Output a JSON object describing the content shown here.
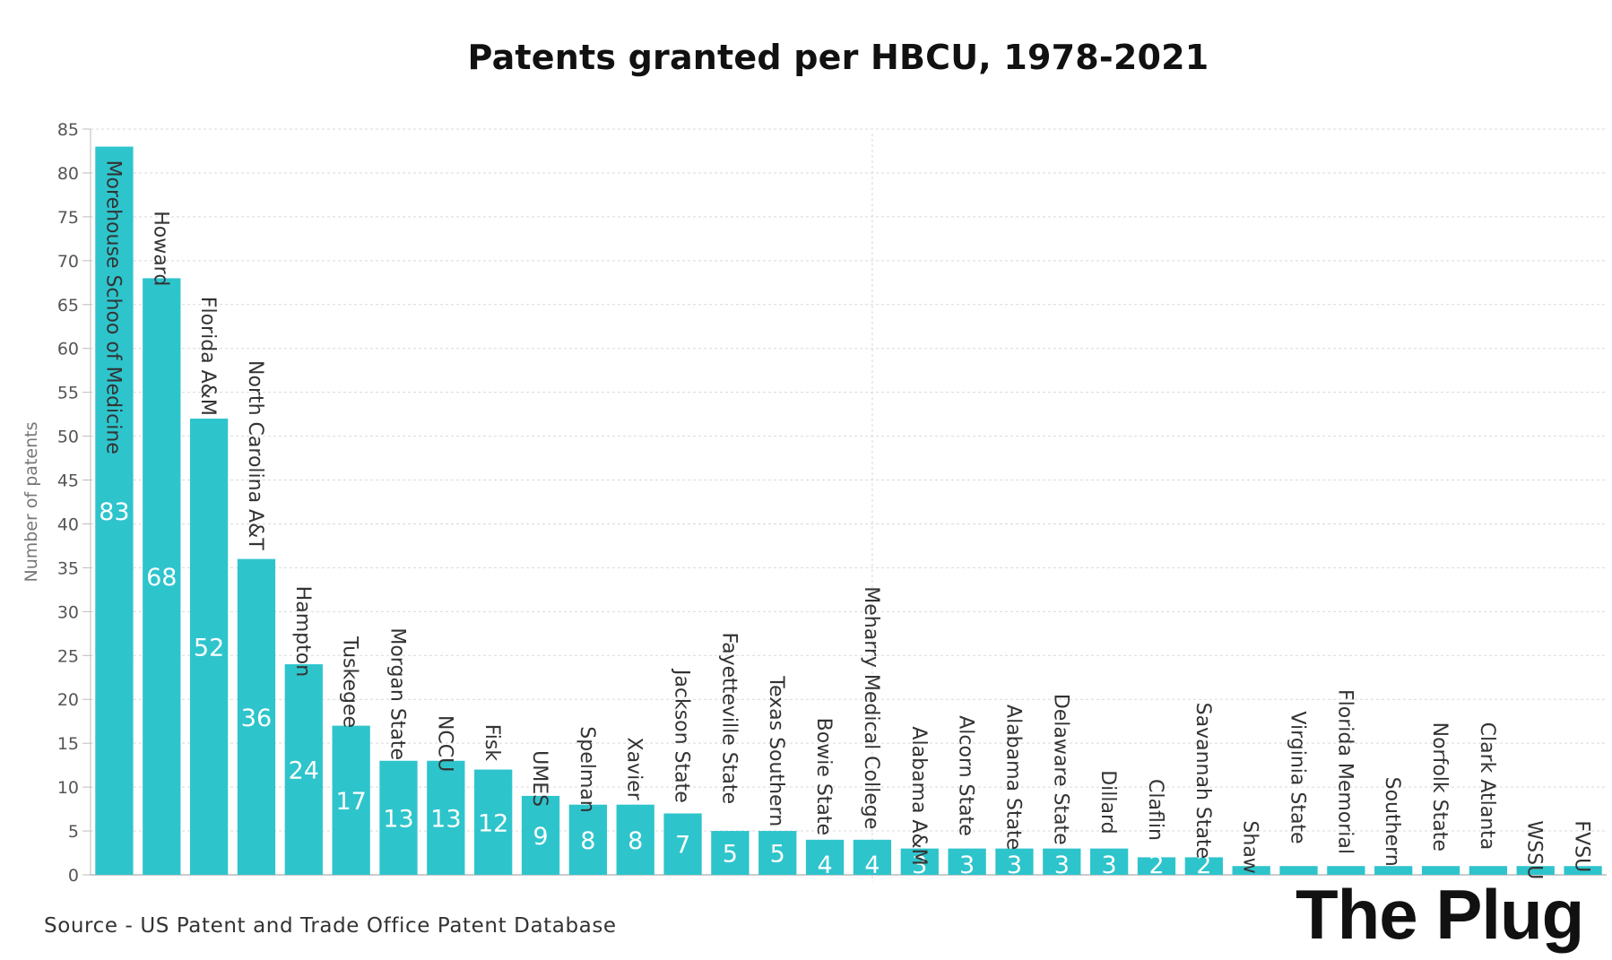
{
  "title": "Patents granted per HBCU, 1978-2021",
  "source": "Source - US Patent and Trade Office Patent Database",
  "brand": "The Plug",
  "colors": {
    "bar": "#2ec4cc",
    "grid": "#d9d9d9",
    "axis_text": "#555555",
    "value_label": "#ffffff"
  },
  "chart_data": {
    "type": "bar",
    "title": "Patents granted per HBCU, 1978-2021",
    "xlabel": "",
    "ylabel": "Number of patents",
    "ylim": [
      0,
      85
    ],
    "yticks": [
      0,
      5,
      10,
      15,
      20,
      25,
      30,
      35,
      40,
      45,
      50,
      55,
      60,
      65,
      70,
      75,
      80,
      85
    ],
    "grid": true,
    "categories": [
      "Morehouse Schoo of Medicine",
      "Howard",
      "Florida A&M",
      "North Carolina A&T",
      "Hampton",
      "Tuskegee",
      "Morgan State",
      "NCCU",
      "Fisk",
      "UMES",
      "Spelman",
      "Xavier",
      "Jackson State",
      "Fayetteville State",
      "Texas Southern",
      "Bowie State",
      "Meharry Medical College",
      "Alabama A&M",
      "Alcorn State",
      "Alabama State",
      "Delaware State",
      "Dillard",
      "Claflin",
      "Savannah State",
      "Shaw",
      "Virginia State",
      "Florida Memorial",
      "Southern",
      "Norfolk State",
      "Clark Atlanta",
      "WSSU",
      "FVSU"
    ],
    "values": [
      83,
      68,
      52,
      36,
      24,
      17,
      13,
      13,
      12,
      9,
      8,
      8,
      7,
      5,
      5,
      4,
      4,
      3,
      3,
      3,
      3,
      3,
      2,
      2,
      1,
      1,
      1,
      1,
      1,
      1,
      1,
      1
    ],
    "value_labels_shown": [
      true,
      true,
      true,
      true,
      true,
      true,
      true,
      true,
      true,
      true,
      true,
      true,
      true,
      true,
      true,
      true,
      true,
      true,
      true,
      true,
      true,
      true,
      true,
      true,
      false,
      false,
      false,
      false,
      false,
      false,
      false,
      false
    ]
  }
}
